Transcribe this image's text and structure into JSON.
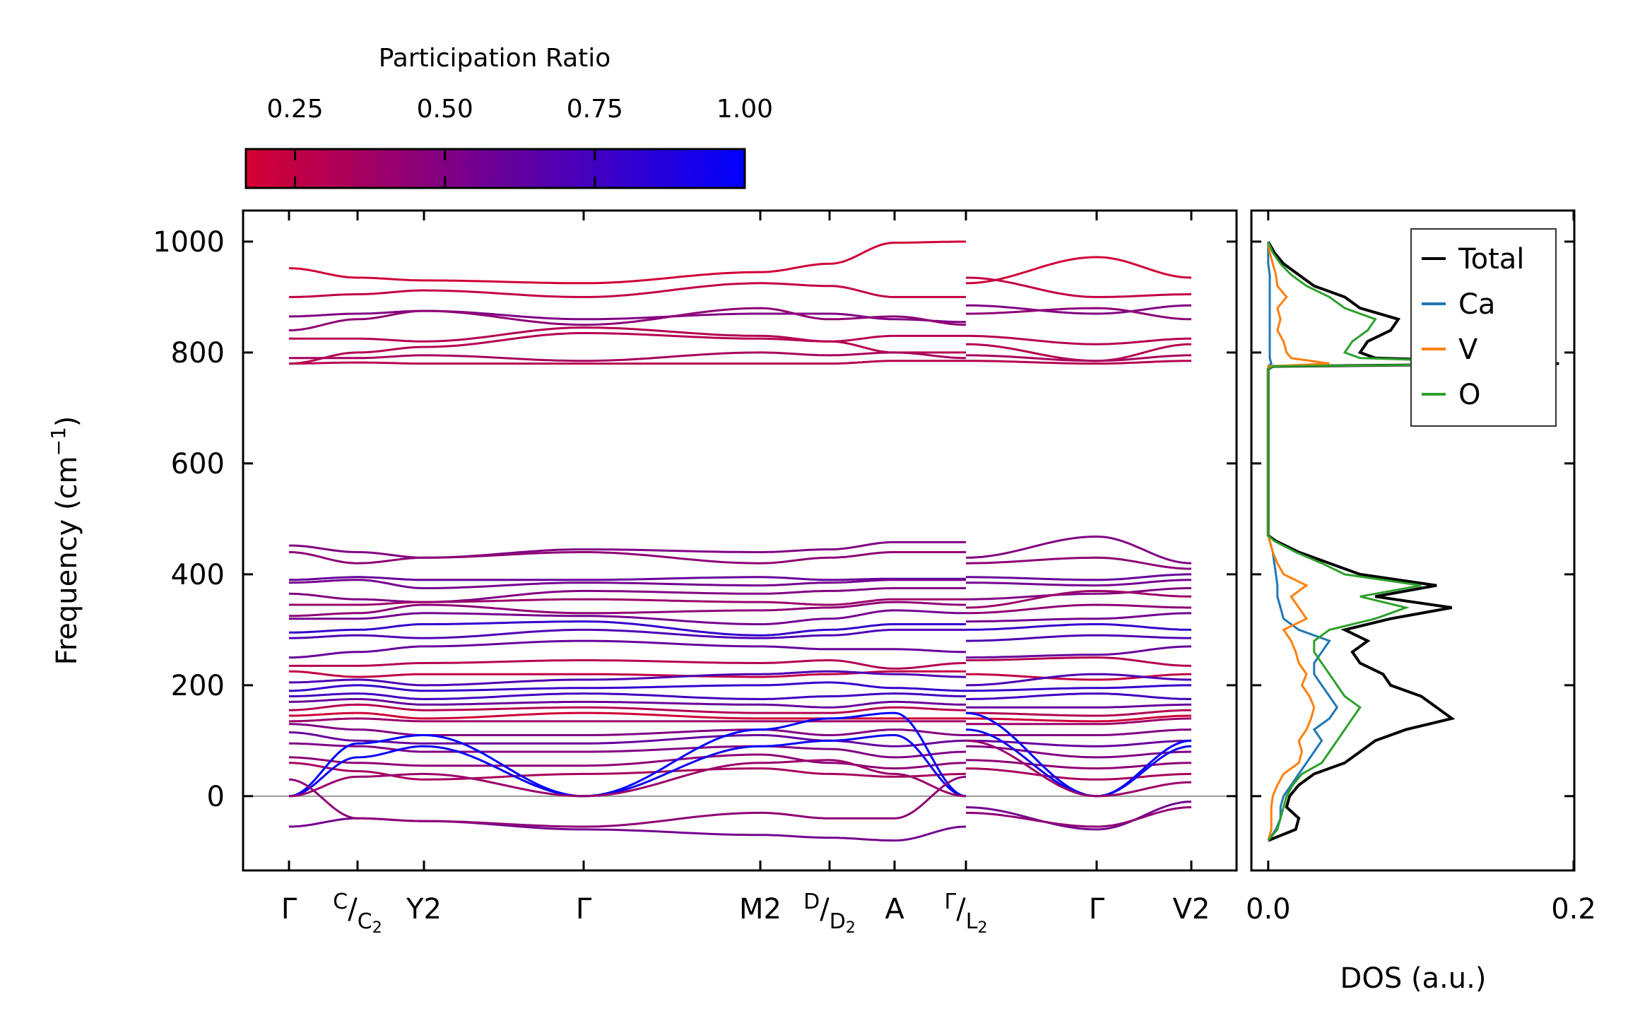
{
  "chart_data": [
    {
      "type": "line",
      "title": "",
      "ylabel": "Frequency (cm⁻¹)",
      "ylabel_parts": {
        "base": "Frequency (cm",
        "sup": "−1",
        "close": ")"
      },
      "ylim": [
        -134,
        1056
      ],
      "yticks": [
        0,
        200,
        400,
        600,
        800,
        1000
      ],
      "kpath_distance": [
        0,
        0.97,
        1.91,
        4.17,
        6.67,
        7.65,
        8.57,
        9.58,
        11.43,
        12.77
      ],
      "kpoint_labels": [
        {
          "main": "Γ"
        },
        {
          "sup": "C",
          "slash": "/",
          "subbase": "C",
          "sub": "2"
        },
        {
          "main": "Y",
          "sub": "2"
        },
        {
          "main": "Γ"
        },
        {
          "main": "M",
          "sub": "2"
        },
        {
          "sup": "D",
          "slash": "/",
          "subbase": "D",
          "sub": "2"
        },
        {
          "main": "A"
        },
        {
          "sup": "Γ",
          "slash": "/",
          "subbase": "L",
          "sub": "2"
        },
        {
          "main": "Γ"
        },
        {
          "main": "V",
          "sub": "2"
        }
      ],
      "band_node_x": [
        0,
        0.97,
        1.91,
        4.17,
        6.67,
        7.65,
        8.57,
        9.58,
        9.58,
        11.43,
        12.77
      ],
      "colorbar": {
        "label": "Participation Ratio",
        "range": [
          0.168,
          1.0
        ],
        "ticks": [
          "0.25",
          "0.50",
          "0.75",
          "1.00"
        ],
        "tick_values": [
          0.25,
          0.5,
          0.75,
          1.0
        ],
        "low_color": "#d70030",
        "high_color": "#0000ff"
      },
      "bands": [
        {
          "pr": 0.2,
          "f": [
            952,
            935,
            930,
            925,
            945,
            960,
            998,
            1000,
            925,
            972,
            935
          ]
        },
        {
          "pr": 0.25,
          "f": [
            900,
            905,
            912,
            900,
            925,
            920,
            900,
            900,
            935,
            900,
            905
          ]
        },
        {
          "pr": 0.5,
          "f": [
            865,
            870,
            875,
            860,
            870,
            870,
            860,
            855,
            885,
            870,
            885
          ]
        },
        {
          "pr": 0.45,
          "f": [
            840,
            860,
            875,
            850,
            880,
            860,
            865,
            850,
            870,
            880,
            860
          ]
        },
        {
          "pr": 0.3,
          "f": [
            825,
            825,
            820,
            845,
            830,
            820,
            830,
            830,
            830,
            815,
            825
          ]
        },
        {
          "pr": 0.3,
          "f": [
            780,
            800,
            810,
            835,
            825,
            820,
            800,
            800,
            815,
            785,
            815
          ]
        },
        {
          "pr": 0.35,
          "f": [
            790,
            790,
            795,
            785,
            800,
            795,
            800,
            790,
            795,
            785,
            795
          ]
        },
        {
          "pr": 0.3,
          "f": [
            780,
            782,
            780,
            780,
            780,
            780,
            785,
            785,
            785,
            780,
            785
          ]
        },
        {
          "pr": 0.5,
          "f": [
            452,
            440,
            430,
            445,
            440,
            445,
            458,
            458,
            430,
            468,
            420
          ]
        },
        {
          "pr": 0.45,
          "f": [
            440,
            420,
            430,
            440,
            420,
            430,
            440,
            440,
            420,
            430,
            410
          ]
        },
        {
          "pr": 0.6,
          "f": [
            390,
            395,
            390,
            390,
            395,
            390,
            392,
            392,
            395,
            390,
            400
          ]
        },
        {
          "pr": 0.55,
          "f": [
            385,
            390,
            375,
            385,
            380,
            385,
            390,
            390,
            385,
            380,
            390
          ]
        },
        {
          "pr": 0.5,
          "f": [
            365,
            355,
            350,
            370,
            365,
            370,
            375,
            375,
            355,
            365,
            375
          ]
        },
        {
          "pr": 0.4,
          "f": [
            345,
            345,
            350,
            355,
            350,
            345,
            355,
            355,
            340,
            370,
            360
          ]
        },
        {
          "pr": 0.45,
          "f": [
            325,
            330,
            345,
            330,
            335,
            340,
            350,
            345,
            330,
            345,
            340
          ]
        },
        {
          "pr": 0.55,
          "f": [
            320,
            320,
            330,
            325,
            310,
            320,
            335,
            330,
            315,
            320,
            330
          ]
        },
        {
          "pr": 0.8,
          "f": [
            295,
            300,
            310,
            315,
            290,
            300,
            310,
            310,
            300,
            310,
            300
          ]
        },
        {
          "pr": 0.7,
          "f": [
            285,
            290,
            285,
            300,
            285,
            290,
            300,
            300,
            280,
            290,
            285
          ]
        },
        {
          "pr": 0.6,
          "f": [
            250,
            260,
            270,
            280,
            270,
            265,
            265,
            260,
            250,
            255,
            270
          ]
        },
        {
          "pr": 0.3,
          "f": [
            235,
            235,
            240,
            245,
            240,
            245,
            230,
            240,
            245,
            250,
            235
          ]
        },
        {
          "pr": 0.25,
          "f": [
            225,
            215,
            220,
            220,
            215,
            220,
            225,
            225,
            220,
            210,
            220
          ]
        },
        {
          "pr": 0.7,
          "f": [
            205,
            210,
            200,
            210,
            220,
            225,
            220,
            215,
            200,
            220,
            210
          ]
        },
        {
          "pr": 0.8,
          "f": [
            190,
            200,
            190,
            195,
            200,
            205,
            195,
            190,
            190,
            195,
            200
          ]
        },
        {
          "pr": 0.75,
          "f": [
            180,
            185,
            175,
            185,
            175,
            180,
            185,
            180,
            175,
            185,
            175
          ]
        },
        {
          "pr": 0.6,
          "f": [
            170,
            175,
            165,
            170,
            165,
            160,
            170,
            165,
            160,
            160,
            165
          ]
        },
        {
          "pr": 0.3,
          "f": [
            155,
            165,
            155,
            160,
            150,
            150,
            160,
            155,
            150,
            145,
            155
          ]
        },
        {
          "pr": 0.2,
          "f": [
            145,
            150,
            140,
            150,
            140,
            140,
            140,
            140,
            140,
            135,
            145
          ]
        },
        {
          "pr": 0.4,
          "f": [
            135,
            140,
            135,
            135,
            135,
            135,
            135,
            135,
            130,
            130,
            140
          ]
        },
        {
          "pr": 0.5,
          "f": [
            130,
            120,
            110,
            110,
            120,
            110,
            120,
            110,
            110,
            110,
            120
          ]
        },
        {
          "pr": 0.6,
          "f": [
            115,
            100,
            95,
            95,
            110,
            100,
            90,
            100,
            100,
            90,
            100
          ]
        },
        {
          "pr": 0.5,
          "f": [
            95,
            90,
            80,
            80,
            90,
            85,
            70,
            80,
            90,
            70,
            80
          ]
        },
        {
          "pr": 0.45,
          "f": [
            70,
            60,
            55,
            55,
            75,
            60,
            50,
            60,
            65,
            50,
            60
          ]
        },
        {
          "pr": 0.35,
          "f": [
            60,
            45,
            30,
            40,
            50,
            40,
            35,
            40,
            50,
            30,
            40
          ]
        },
        {
          "pr": 1.0,
          "f": [
            0,
            95,
            110,
            0,
            120,
            140,
            150,
            0,
            150,
            0,
            100
          ]
        },
        {
          "pr": 0.95,
          "f": [
            0,
            70,
            90,
            0,
            90,
            100,
            110,
            0,
            120,
            0,
            90
          ]
        },
        {
          "pr": 0.4,
          "f": [
            0,
            35,
            40,
            0,
            60,
            65,
            40,
            0,
            100,
            0,
            25
          ]
        },
        {
          "pr": 0.55,
          "f": [
            -55,
            -40,
            -45,
            -60,
            -70,
            -75,
            -80,
            -55,
            -20,
            -60,
            -10
          ]
        },
        {
          "pr": 0.45,
          "f": [
            30,
            -40,
            -45,
            -55,
            -30,
            -40,
            -40,
            35,
            -30,
            -55,
            -20
          ]
        }
      ]
    },
    {
      "type": "line",
      "xlabel": "DOS (a.u.)",
      "xlim": [
        -0.011,
        0.2
      ],
      "xticks": [
        "0.0",
        "0.2"
      ],
      "xtick_values": [
        0.0,
        0.2
      ],
      "ylim": [
        -134,
        1056
      ],
      "legend": "top-right",
      "frequency": [
        -80,
        -60,
        -40,
        -20,
        0,
        20,
        40,
        60,
        80,
        100,
        120,
        140,
        160,
        180,
        200,
        220,
        240,
        260,
        280,
        300,
        320,
        340,
        360,
        380,
        400,
        420,
        440,
        460,
        470,
        770,
        775,
        780,
        790,
        800,
        820,
        840,
        860,
        880,
        900,
        920,
        940,
        960,
        980,
        1000
      ],
      "series": [
        {
          "name": "Total",
          "color": "#000000",
          "values": [
            0,
            0.018,
            0.02,
            0.012,
            0.014,
            0.02,
            0.03,
            0.05,
            0.06,
            0.07,
            0.09,
            0.12,
            0.11,
            0.1,
            0.08,
            0.075,
            0.06,
            0.055,
            0.065,
            0.05,
            0.08,
            0.12,
            0.07,
            0.11,
            0.06,
            0.04,
            0.02,
            0.005,
            0,
            0,
            0.003,
            0.19,
            0.07,
            0.06,
            0.065,
            0.08,
            0.085,
            0.06,
            0.05,
            0.03,
            0.02,
            0.01,
            0.004,
            0
          ]
        },
        {
          "name": "Ca",
          "color": "#1f77b4",
          "values": [
            0,
            0.005,
            0.008,
            0.008,
            0.01,
            0.015,
            0.02,
            0.025,
            0.03,
            0.035,
            0.03,
            0.04,
            0.045,
            0.04,
            0.035,
            0.03,
            0.03,
            0.035,
            0.04,
            0.02,
            0.01,
            0.008,
            0.006,
            0.006,
            0.005,
            0.004,
            0.003,
            0.001,
            0,
            0,
            0,
            0.002,
            0.001,
            0.001,
            0.001,
            0.001,
            0.001,
            0.001,
            0.001,
            0.001,
            0.001,
            0,
            0,
            0
          ]
        },
        {
          "name": "V",
          "color": "#ff7f0e",
          "values": [
            0,
            0.002,
            0.002,
            0.002,
            0.003,
            0.006,
            0.01,
            0.02,
            0.022,
            0.02,
            0.025,
            0.028,
            0.03,
            0.027,
            0.022,
            0.025,
            0.02,
            0.018,
            0.015,
            0.01,
            0.025,
            0.02,
            0.015,
            0.025,
            0.01,
            0.006,
            0.003,
            0.001,
            0,
            0,
            0,
            0.04,
            0.015,
            0.012,
            0.01,
            0.006,
            0.008,
            0.006,
            0.012,
            0.006,
            0.005,
            0.003,
            0.001,
            0
          ]
        },
        {
          "name": "O",
          "color": "#2ca02c",
          "values": [
            0,
            0.006,
            0.008,
            0.01,
            0.012,
            0.016,
            0.022,
            0.035,
            0.04,
            0.045,
            0.05,
            0.055,
            0.06,
            0.05,
            0.045,
            0.04,
            0.035,
            0.03,
            0.03,
            0.04,
            0.07,
            0.09,
            0.06,
            0.1,
            0.05,
            0.035,
            0.018,
            0.004,
            0,
            0,
            0.003,
            0.18,
            0.06,
            0.05,
            0.055,
            0.065,
            0.07,
            0.05,
            0.04,
            0.025,
            0.015,
            0.008,
            0.003,
            0
          ]
        }
      ]
    }
  ]
}
